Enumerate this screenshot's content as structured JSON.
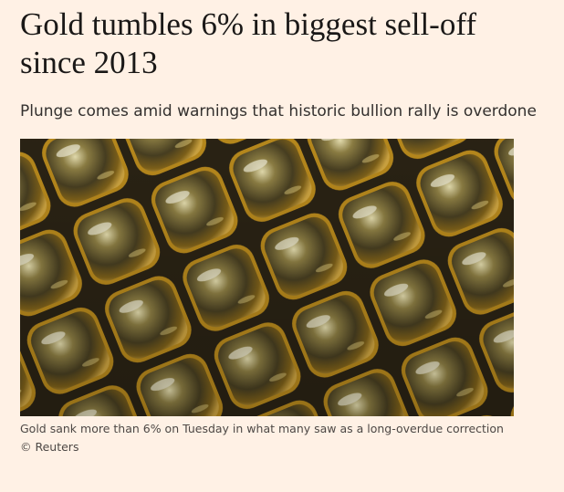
{
  "article": {
    "headline": "Gold tumbles 6% in biggest sell-off since 2013",
    "standfirst": "Plunge comes amid warnings that historic bullion rally is overdone",
    "caption": "Gold sank more than 6% on Tuesday in what many saw as a long-overdue correction © Reuters"
  }
}
